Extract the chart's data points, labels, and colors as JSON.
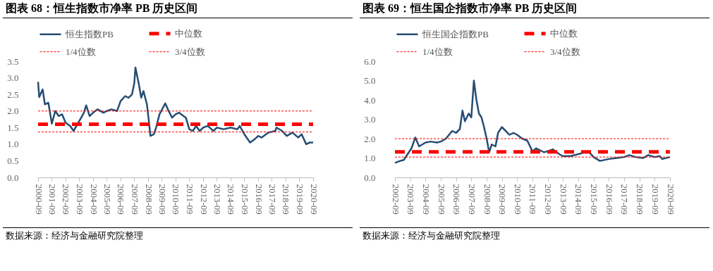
{
  "chart_data": [
    {
      "type": "line",
      "title": "图表 68：恒生指数市净率 PB 历史区间",
      "annotations": [
        "数据来源：经济与金融研究院整理"
      ],
      "legend": "top",
      "grid": false,
      "ylim": [
        0,
        3.5
      ],
      "yticks": [
        {
          "value": 0,
          "label": "0.0"
        },
        {
          "value": 0.5,
          "label": "0.5"
        },
        {
          "value": 1,
          "label": "1.0"
        },
        {
          "value": 1.5,
          "label": "1.5"
        },
        {
          "value": 2,
          "label": "2.0"
        },
        {
          "value": 2.5,
          "label": "2.5"
        },
        {
          "value": 3,
          "label": "3.0"
        },
        {
          "value": 3.5,
          "label": "3.5"
        }
      ],
      "xlim": [
        "2000-09",
        "2020-09"
      ],
      "xticks": [
        {
          "value": "2000-09",
          "label": "2000-09"
        },
        {
          "value": "2001-09",
          "label": "2001-09"
        },
        {
          "value": "2002-09",
          "label": "2002-09"
        },
        {
          "value": "2003-09",
          "label": "2003-09"
        },
        {
          "value": "2004-09",
          "label": "2004-09"
        },
        {
          "value": "2005-09",
          "label": "2005-09"
        },
        {
          "value": "2006-09",
          "label": "2006-09"
        },
        {
          "value": "2007-09",
          "label": "2007-09"
        },
        {
          "value": "2008-09",
          "label": "2008-09"
        },
        {
          "value": "2009-09",
          "label": "2009-09"
        },
        {
          "value": "2010-09",
          "label": "2010-09"
        },
        {
          "value": "2011-09",
          "label": "2011-09"
        },
        {
          "value": "2012-09",
          "label": "2012-09"
        },
        {
          "value": "2013-09",
          "label": "2013-09"
        },
        {
          "value": "2014-09",
          "label": "2014-09"
        },
        {
          "value": "2015-09",
          "label": "2015-09"
        },
        {
          "value": "2016-09",
          "label": "2016-09"
        },
        {
          "value": "2017-09",
          "label": "2017-09"
        },
        {
          "value": "2018-09",
          "label": "2018-09"
        },
        {
          "value": "2019-09",
          "label": "2019-09"
        },
        {
          "value": "2020-09",
          "label": "2020-09"
        }
      ],
      "series": [
        {
          "name": "恒生指数PB",
          "color": "#264d73",
          "line_style": "solid",
          "x": [
            "2000-09",
            "2000-10",
            "2001-01",
            "2001-03",
            "2001-06",
            "2001-09",
            "2001-12",
            "2002-03",
            "2002-06",
            "2002-09",
            "2003-01",
            "2003-04",
            "2003-09",
            "2004-01",
            "2004-03",
            "2004-06",
            "2004-09",
            "2005-01",
            "2005-06",
            "2005-09",
            "2006-01",
            "2006-06",
            "2006-09",
            "2007-01",
            "2007-04",
            "2007-07",
            "2007-09",
            "2007-10",
            "2008-01",
            "2008-03",
            "2008-05",
            "2008-08",
            "2008-10",
            "2008-11",
            "2009-02",
            "2009-04",
            "2009-07",
            "2009-10",
            "2009-12",
            "2010-03",
            "2010-06",
            "2010-09",
            "2010-12",
            "2011-06",
            "2011-09",
            "2011-12",
            "2012-03",
            "2012-06",
            "2012-09",
            "2013-01",
            "2013-06",
            "2013-09",
            "2014-03",
            "2014-09",
            "2015-03",
            "2015-05",
            "2015-09",
            "2016-02",
            "2016-06",
            "2016-09",
            "2016-12",
            "2017-06",
            "2017-12",
            "2018-01",
            "2018-06",
            "2018-10",
            "2019-03",
            "2019-08",
            "2019-11",
            "2020-03",
            "2020-06",
            "2020-09"
          ],
          "values": [
            2.88,
            2.42,
            2.65,
            2.2,
            2.25,
            1.62,
            2.0,
            1.85,
            1.9,
            1.65,
            1.55,
            1.4,
            1.7,
            1.95,
            2.17,
            1.85,
            1.95,
            2.05,
            1.95,
            2.0,
            2.05,
            2.0,
            2.3,
            2.45,
            2.4,
            2.5,
            2.85,
            3.31,
            2.8,
            2.4,
            2.6,
            2.2,
            1.6,
            1.25,
            1.3,
            1.5,
            1.9,
            2.1,
            2.23,
            2.0,
            1.8,
            1.9,
            1.95,
            1.8,
            1.45,
            1.4,
            1.55,
            1.4,
            1.5,
            1.55,
            1.4,
            1.5,
            1.45,
            1.5,
            1.45,
            1.55,
            1.3,
            1.05,
            1.15,
            1.25,
            1.2,
            1.35,
            1.4,
            1.5,
            1.4,
            1.25,
            1.35,
            1.2,
            1.3,
            1.0,
            1.05,
            1.05
          ]
        },
        {
          "name": "中位数",
          "color": "#ff0000",
          "line_style": "dashed",
          "x": [
            "2000-09",
            "2020-09"
          ],
          "values": [
            1.6,
            1.6
          ]
        },
        {
          "name": "1/4位数",
          "color": "#ff0000",
          "line_style": "dotted",
          "x": [
            "2000-09",
            "2020-09"
          ],
          "values": [
            1.37,
            1.37
          ]
        },
        {
          "name": "3/4位数",
          "color": "#ff0000",
          "line_style": "dotted",
          "x": [
            "2000-09",
            "2020-09"
          ],
          "values": [
            2.0,
            2.0
          ]
        }
      ]
    },
    {
      "type": "line",
      "title": "图表 69：恒生国企指数市净率 PB 历史区间",
      "annotations": [
        "数据来源：经济与金融研究院整理"
      ],
      "legend": "top",
      "grid": false,
      "ylim": [
        0,
        6
      ],
      "yticks": [
        {
          "value": 0,
          "label": "0.0"
        },
        {
          "value": 1,
          "label": "1.0"
        },
        {
          "value": 2,
          "label": "2.0"
        },
        {
          "value": 3,
          "label": "3.0"
        },
        {
          "value": 4,
          "label": "4.0"
        },
        {
          "value": 5,
          "label": "5.0"
        },
        {
          "value": 6,
          "label": "6.0"
        }
      ],
      "xlim": [
        "2002-09",
        "2020-09"
      ],
      "xticks": [
        {
          "value": "2002-09",
          "label": "2002-09"
        },
        {
          "value": "2003-09",
          "label": "2003-09"
        },
        {
          "value": "2004-09",
          "label": "2004-09"
        },
        {
          "value": "2005-09",
          "label": "2005-09"
        },
        {
          "value": "2006-09",
          "label": "2006-09"
        },
        {
          "value": "2007-09",
          "label": "2007-09"
        },
        {
          "value": "2008-09",
          "label": "2008-09"
        },
        {
          "value": "2009-09",
          "label": "2009-09"
        },
        {
          "value": "2010-09",
          "label": "2010-09"
        },
        {
          "value": "2011-09",
          "label": "2011-09"
        },
        {
          "value": "2012-09",
          "label": "2012-09"
        },
        {
          "value": "2013-09",
          "label": "2013-09"
        },
        {
          "value": "2014-09",
          "label": "2014-09"
        },
        {
          "value": "2015-09",
          "label": "2015-09"
        },
        {
          "value": "2016-09",
          "label": "2016-09"
        },
        {
          "value": "2017-09",
          "label": "2017-09"
        },
        {
          "value": "2018-09",
          "label": "2018-09"
        },
        {
          "value": "2019-09",
          "label": "2019-09"
        },
        {
          "value": "2020-09",
          "label": "2020-09"
        }
      ],
      "series": [
        {
          "name": "恒生国企指数PB",
          "color": "#264d73",
          "line_style": "solid",
          "x": [
            "2002-09",
            "2003-01",
            "2003-04",
            "2003-07",
            "2003-10",
            "2004-01",
            "2004-04",
            "2004-09",
            "2005-01",
            "2005-06",
            "2005-09",
            "2006-01",
            "2006-06",
            "2006-09",
            "2006-12",
            "2007-02",
            "2007-04",
            "2007-07",
            "2007-09",
            "2007-11",
            "2008-01",
            "2008-03",
            "2008-05",
            "2008-07",
            "2008-09",
            "2008-11",
            "2009-01",
            "2009-04",
            "2009-06",
            "2009-09",
            "2009-12",
            "2010-03",
            "2010-06",
            "2010-09",
            "2011-01",
            "2011-05",
            "2011-09",
            "2011-12",
            "2012-06",
            "2012-09",
            "2013-01",
            "2013-06",
            "2013-09",
            "2014-03",
            "2014-09",
            "2015-05",
            "2015-09",
            "2016-02",
            "2016-09",
            "2017-03",
            "2017-09",
            "2018-01",
            "2018-06",
            "2018-12",
            "2019-04",
            "2019-09",
            "2020-01",
            "2020-03",
            "2020-09"
          ],
          "values": [
            0.75,
            0.85,
            0.9,
            1.2,
            1.5,
            2.06,
            1.6,
            1.8,
            1.85,
            1.8,
            1.85,
            2.0,
            2.4,
            2.3,
            2.5,
            3.45,
            2.9,
            3.3,
            3.1,
            5.0,
            4.0,
            3.3,
            3.1,
            2.6,
            2.0,
            1.3,
            1.7,
            1.6,
            2.3,
            2.6,
            2.4,
            2.2,
            2.3,
            2.2,
            2.0,
            1.9,
            1.35,
            1.5,
            1.3,
            1.35,
            1.45,
            1.2,
            1.1,
            1.1,
            1.2,
            1.35,
            1.05,
            0.85,
            0.95,
            1.0,
            1.05,
            1.15,
            1.05,
            1.0,
            1.15,
            1.05,
            1.1,
            0.95,
            1.05
          ]
        },
        {
          "name": "中位数",
          "color": "#ff0000",
          "line_style": "dashed",
          "x": [
            "2002-09",
            "2020-09"
          ],
          "values": [
            1.32,
            1.32
          ]
        },
        {
          "name": "1/4位数",
          "color": "#ff0000",
          "line_style": "dotted",
          "x": [
            "2002-09",
            "2020-09"
          ],
          "values": [
            1.05,
            1.05
          ]
        },
        {
          "name": "3/4位数",
          "color": "#ff0000",
          "line_style": "dotted",
          "x": [
            "2002-09",
            "2020-09"
          ],
          "values": [
            2.0,
            2.0
          ]
        }
      ]
    }
  ]
}
